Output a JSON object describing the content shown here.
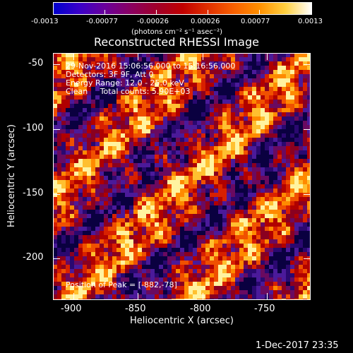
{
  "colorbar": {
    "tick_labels": [
      "-0.0013",
      "-0.00077",
      "-0.00026",
      "0.00026",
      "0.00077",
      "0.0013"
    ],
    "unit_label": "(photons cm⁻² s⁻¹ asec⁻²)"
  },
  "title": "Reconstructed RHESSI Image",
  "info": {
    "time_range": "29-Nov-2016 15:06:56.000 to 15:16:56.000",
    "detectors": "Detectors: 3F 9F, Att 0",
    "energy": "Energy Range: 12.0 - 25.0 keV",
    "clean": "Clean     Total counts: 5.90E+03",
    "peak": "Position of Peak = [-882,-78]"
  },
  "x_axis": {
    "label": "Heliocentric X (arcsec)",
    "ticks": [
      "-900",
      "-850",
      "-800",
      "-750"
    ]
  },
  "y_axis": {
    "label": "Heliocentric Y (arcsec)",
    "ticks": [
      "-50",
      "-100",
      "-150",
      "-200"
    ]
  },
  "footer_timestamp": "1-Dec-2017 23:35"
}
